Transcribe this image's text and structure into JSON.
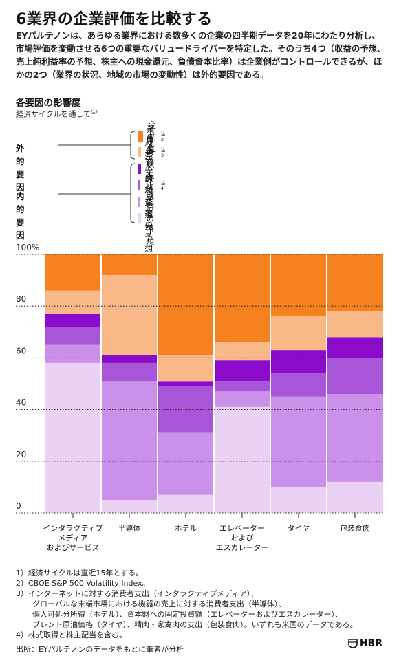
{
  "title": "6業界の企業評価を比較する",
  "description": "EYパルテノンは、あらゆる業界における数多くの企業の四半期データを20年にわたり分析し、市場評価を変動させる6つの重要なバリュードライバーを特定した。そのうち4つ（収益の予想、売上純利益率の予想、株主への現金還元、負債資本比率）は企業側がコントロールできるが、ほかの2つ（業界の状況、地域の市場の変動性）は外的要因である。",
  "subtitle": "各要因の影響度",
  "subtitle_note": "経済サイクルを通して",
  "subtitle_note_mark": "注1",
  "legend": {
    "external_label": "外的要因",
    "internal_label": "内的要因",
    "items": [
      {
        "label": "変動性",
        "mark": "注2",
        "color": "#F5821F"
      },
      {
        "label": "業界の状況",
        "mark": "注3",
        "color": "#F9B887"
      },
      {
        "label": "負債資本比率",
        "mark": "",
        "color": "#8A0BC9"
      },
      {
        "label": "株主への現金還元",
        "mark": "注4",
        "color": "#A955D8"
      },
      {
        "label": "売上純利益率の予想",
        "mark": "",
        "color": "#CA90EA"
      },
      {
        "label": "収益の予想",
        "mark": "",
        "color": "#EBD2F5"
      }
    ]
  },
  "chart_data": {
    "type": "bar",
    "stacked": true,
    "ylim": [
      0,
      100
    ],
    "y_ticks": [
      "0",
      "20",
      "40",
      "60",
      "80",
      "100%"
    ],
    "categories": [
      "インタラクティブ\nメディア\nおよびサービス",
      "半導体",
      "ホテル",
      "エレベーター\nおよび\nエスカレーター",
      "タイヤ",
      "包装食肉"
    ],
    "series": [
      {
        "name": "収益の予想",
        "color": "#EBD2F5",
        "values": [
          58,
          5,
          7,
          41,
          10,
          12
        ]
      },
      {
        "name": "売上純利益率の予想",
        "color": "#CA90EA",
        "values": [
          7,
          46,
          24,
          6,
          35,
          34
        ]
      },
      {
        "name": "株主への現金還元",
        "color": "#A955D8",
        "values": [
          7,
          7,
          18,
          4,
          9,
          14
        ]
      },
      {
        "name": "負債資本比率",
        "color": "#8A0BC9",
        "values": [
          5,
          3,
          2,
          8,
          9,
          8
        ]
      },
      {
        "name": "業界の状況",
        "color": "#F9B887",
        "values": [
          9,
          31,
          10,
          7,
          13,
          10
        ]
      },
      {
        "name": "変動性",
        "color": "#F5821F",
        "values": [
          14,
          8,
          39,
          34,
          24,
          22
        ]
      }
    ]
  },
  "footnotes": [
    "1）経済サイクルは直近15年とする。",
    "2）CBOE S&P 500 Volatility Index。",
    "3）インターネットに対する消費者支出（インタラクティブメディア）、",
    "グローバルな末端市場における機器の売上に対する消費者支出（半導体）、",
    "個人可処分所得（ホテル）、資本財への固定投資額（エレベーターおよびエスカレーター）、",
    "ブレント原油価格（タイヤ）、精肉・家禽肉の支出（包装食肉）。いずれも米国のデータである。",
    "4）株式取得と株主配当を含む。"
  ],
  "source": "出所：EYパルテノンのデータをもとに筆者が分析",
  "brand": "HBR"
}
